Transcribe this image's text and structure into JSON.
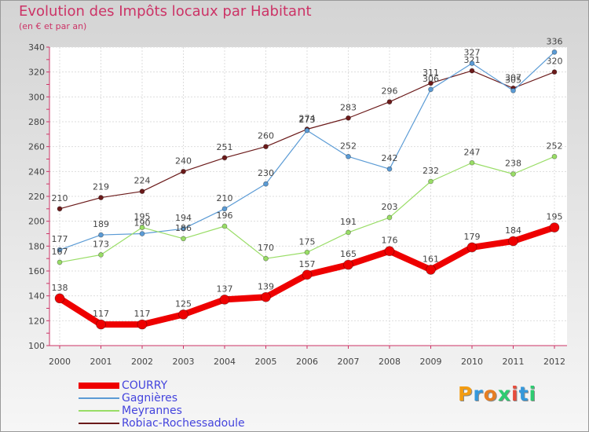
{
  "page": {
    "title": "Evolution des Impôts locaux par Habitant",
    "subtitle": "(en € et par an)"
  },
  "chart_data": {
    "type": "line",
    "title": "Evolution des Impôts locaux par Habitant",
    "subtitle": "(en € et par an)",
    "xlabel": "",
    "ylabel": "",
    "ylim": [
      100,
      340
    ],
    "yticks": [
      100,
      120,
      140,
      160,
      180,
      200,
      220,
      240,
      260,
      280,
      300,
      320,
      340
    ],
    "grid": true,
    "legend_position": "bottom-left",
    "categories": [
      "2000",
      "2001",
      "2002",
      "2003",
      "2004",
      "2005",
      "2006",
      "2007",
      "2008",
      "2009",
      "2010",
      "2011",
      "2012"
    ],
    "series": [
      {
        "name": "Robiac-Rochessadoule",
        "color": "#6b1a1a",
        "values": [
          210,
          219,
          224,
          240,
          251,
          260,
          274,
          283,
          296,
          311,
          321,
          307,
          320
        ]
      },
      {
        "name": "Gagnières",
        "color": "#5b9bd5",
        "values": [
          177,
          189,
          190,
          194,
          210,
          230,
          273,
          252,
          242,
          306,
          327,
          305,
          336
        ]
      },
      {
        "name": "Meyrannes",
        "color": "#99dd66",
        "values": [
          167,
          173,
          195,
          186,
          196,
          170,
          175,
          191,
          203,
          232,
          247,
          238,
          252
        ]
      },
      {
        "name": "COURRY",
        "color": "#ee0000",
        "values": [
          138,
          117,
          117,
          125,
          137,
          139,
          157,
          165,
          176,
          161,
          179,
          184,
          195
        ]
      }
    ],
    "legend": [
      "COURRY",
      "Gagnières",
      "Meyrannes",
      "Robiac-Rochessadoule"
    ]
  },
  "logo": {
    "chars": [
      "P",
      "r",
      "o",
      "x",
      "i",
      "t",
      "i"
    ],
    "colors": [
      "#f39c12",
      "#3498db",
      "#e67e22",
      "#2ecc71",
      "#e74c3c",
      "#3498db",
      "#2ecc71"
    ]
  }
}
